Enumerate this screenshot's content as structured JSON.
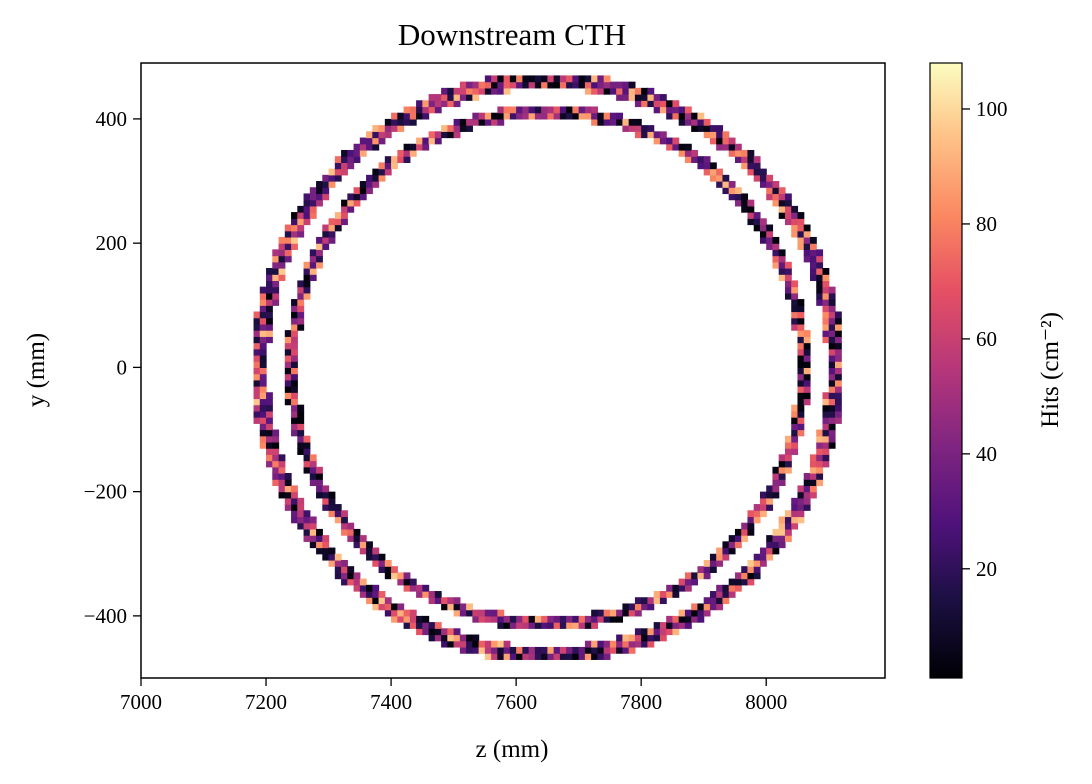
{
  "chart_data": {
    "type": "heatmap",
    "title": "Downstream CTH",
    "xlabel": "z (mm)",
    "ylabel": "y (mm)",
    "colorbar_label": "Hits (cm⁻²)",
    "colormap": "magma",
    "color_range": [
      1,
      108
    ],
    "xlim": [
      7000,
      8190
    ],
    "ylim": [
      -500,
      490
    ],
    "x_ticks": [
      7000,
      7200,
      7400,
      7600,
      7800,
      8000
    ],
    "x_tick_labels": [
      "7000",
      "7200",
      "7400",
      "7600",
      "7800",
      "8000"
    ],
    "y_ticks": [
      400,
      200,
      0,
      -200,
      -400
    ],
    "y_tick_labels": [
      "400",
      "200",
      "0",
      "−200",
      "−400"
    ],
    "colorbar_ticks": [
      100,
      80,
      60,
      40,
      20
    ],
    "colorbar_tick_labels": [
      "100",
      "80",
      "60",
      "40",
      "20"
    ],
    "bin_size_mm": 10,
    "rings": [
      {
        "name": "",
        "center_z": 7650,
        "center_y": 0,
        "radius_z": 460,
        "radius_y": 462,
        "width": 26
      },
      {
        "name": "",
        "center_z": 7650,
        "center_y": 0,
        "radius_z": 410,
        "radius_y": 412,
        "width": 20
      }
    ]
  }
}
